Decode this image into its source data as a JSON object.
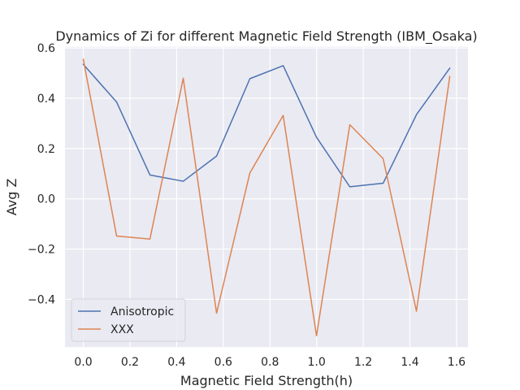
{
  "chart_data": {
    "type": "line",
    "title": "Dynamics of Zi for different Magnetic Field Strength (IBM_Osaka)",
    "xlabel": "Magnetic Field Strength(h)",
    "ylabel": "Avg Z",
    "xlim": [
      -0.0785,
      1.649
    ],
    "ylim": [
      -0.59,
      0.605
    ],
    "xticks": [
      0.0,
      0.2,
      0.4,
      0.6,
      0.8,
      1.0,
      1.2,
      1.4,
      1.6
    ],
    "xtick_labels": [
      "0.0",
      "0.2",
      "0.4",
      "0.6",
      "0.8",
      "1.0",
      "1.2",
      "1.4",
      "1.6"
    ],
    "yticks": [
      -0.4,
      -0.2,
      0.0,
      0.2,
      0.4,
      0.6
    ],
    "ytick_labels": [
      "−0.4",
      "−0.2",
      "0.0",
      "0.2",
      "0.4",
      "0.6"
    ],
    "grid": true,
    "legend_position": "lower-left",
    "x": [
      0.0,
      0.1428,
      0.2856,
      0.4284,
      0.5712,
      0.714,
      0.8568,
      0.9996,
      1.1424,
      1.2852,
      1.428,
      1.5708
    ],
    "series": [
      {
        "name": "Anisotropic",
        "color": "#4c72b0",
        "values": [
          0.535,
          0.385,
          0.095,
          0.07,
          0.17,
          0.478,
          0.53,
          0.245,
          0.048,
          0.062,
          0.335,
          0.52
        ]
      },
      {
        "name": "XXX",
        "color": "#dd8452",
        "values": [
          0.555,
          -0.148,
          -0.16,
          0.48,
          -0.455,
          0.103,
          0.332,
          -0.545,
          0.295,
          0.16,
          -0.447,
          0.487
        ]
      }
    ]
  }
}
